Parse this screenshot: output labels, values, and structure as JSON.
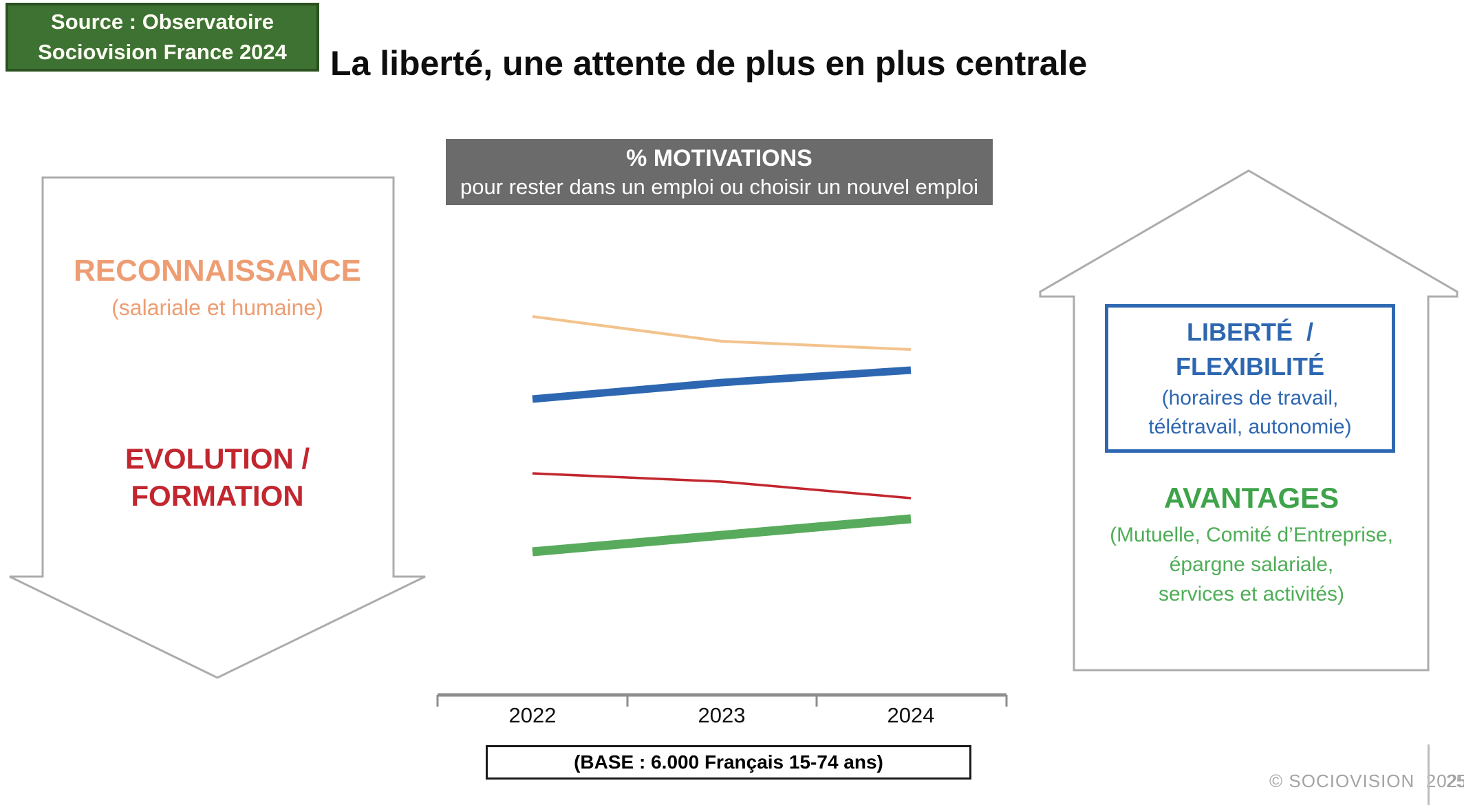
{
  "source_box": {
    "line1": "Source : Observatoire",
    "line2": "Sociovision France 2024"
  },
  "title": "La liberté, une attente de plus en plus centrale",
  "chart_header": {
    "title": "% MOTIVATIONS",
    "subtitle": "pour rester dans un emploi ou choisir un nouvel emploi"
  },
  "declining_arrow": {
    "direction": "down",
    "item1_title": "RECONNAISSANCE",
    "item1_sub": "(salariale et humaine)",
    "item2_line1": "EVOLUTION /",
    "item2_line2": "FORMATION"
  },
  "rising_arrow": {
    "direction": "up",
    "box_line1": "LIBERTÉ  /",
    "box_line2": "FLEXIBILITÉ",
    "box_sub1": "(horaires de travail,",
    "box_sub2": "télétravail, autonomie)",
    "item2_title": "AVANTAGES",
    "item2_sub1": "(Mutuelle, Comité d’Entreprise,",
    "item2_sub2": "épargne salariale,",
    "item2_sub3": "services et activités)"
  },
  "base_note": "(BASE : 6.000 Français 15-74 ans)",
  "footer": {
    "copyright": "© SOCIOVISION  2025",
    "page_number": "25"
  },
  "colors": {
    "source_green": "#3E7233",
    "source_border": "#2B5121",
    "header_gray": "#6B6B6B",
    "salmon_text": "#EE9D72",
    "red_text": "#C2262E",
    "blue_text": "#2E67B1",
    "green_title_text": "#3EA34A",
    "green_sub_text": "#4FAE57",
    "outline_gray": "#ACACAC",
    "axis_gray": "#8E8E8E",
    "footer_gray": "#A3A3A3"
  },
  "chart_data": {
    "type": "line",
    "title": "% MOTIVATIONS",
    "subtitle": "pour rester dans un emploi ou choisir un nouvel emploi",
    "x": [
      "2022",
      "2023",
      "2024"
    ],
    "series": [
      {
        "name": "RECONNAISSANCE (salariale et humaine)",
        "color": "#F3C38D",
        "stroke_width": 4,
        "trend": "down",
        "values": [
          95,
          89,
          87
        ]
      },
      {
        "name": "LIBERTÉ / FLEXIBILITÉ",
        "color": "#2E67B1",
        "stroke_width": 11,
        "trend": "up",
        "values": [
          75,
          79,
          82
        ]
      },
      {
        "name": "EVOLUTION / FORMATION",
        "color": "#C2262E",
        "stroke_width": 3.5,
        "trend": "down",
        "values": [
          57,
          55,
          51
        ]
      },
      {
        "name": "AVANTAGES (Mutuelle, Comité d’Entreprise, épargne salariale, services et activités)",
        "color": "#58AB5C",
        "stroke_width": 13,
        "trend": "up",
        "values": [
          38,
          42,
          46
        ]
      }
    ],
    "ylim": [
      0,
      100
    ],
    "grid": false,
    "legend": "none (series identified by colored annotations on slide sides)",
    "note": "Lines carry no numeric labels on the slide; values are estimated relative positions.",
    "base_label": "(BASE : 6.000 Français 15-74 ans)"
  }
}
